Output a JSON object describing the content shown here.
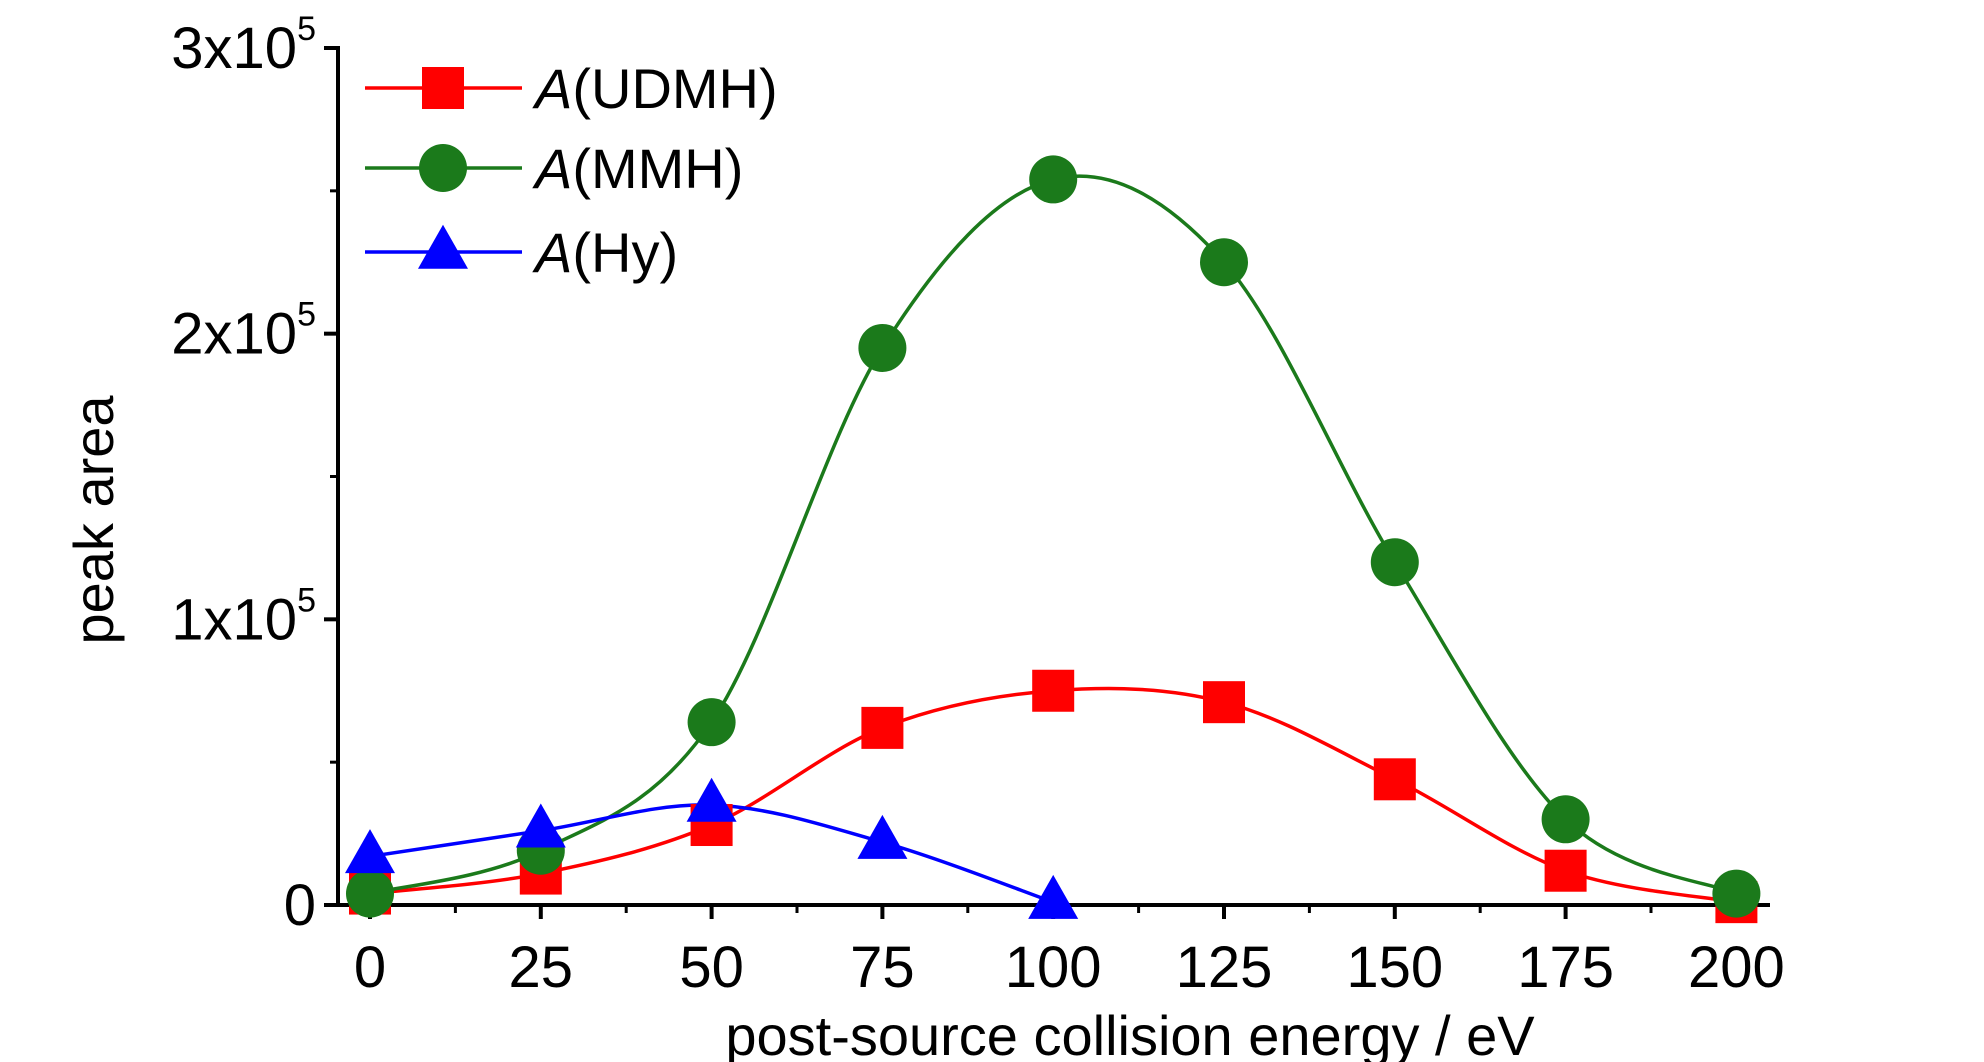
{
  "chart_data": {
    "type": "line",
    "xlabel": "post-source collision energy / eV",
    "ylabel": "peak area",
    "xlim": [
      -10,
      205
    ],
    "ylim": [
      0,
      300000
    ],
    "x_ticks": [
      0,
      25,
      50,
      75,
      100,
      125,
      150,
      175,
      200
    ],
    "x_tick_labels": [
      "0",
      "25",
      "50",
      "75",
      "100",
      "125",
      "150",
      "175",
      "200"
    ],
    "y_ticks": [
      {
        "value": 0,
        "base": "0",
        "exp": ""
      },
      {
        "value": 100000,
        "base": "1x10",
        "exp": "5"
      },
      {
        "value": 200000,
        "base": "2x10",
        "exp": "5"
      },
      {
        "value": 300000,
        "base": "3x10",
        "exp": "5"
      }
    ],
    "grid": false,
    "legend_position": "top-left",
    "series": [
      {
        "name_italic": "A",
        "name_rest": "(UDMH)",
        "color": "#ff0000",
        "marker": "square",
        "x": [
          0,
          25,
          50,
          75,
          100,
          125,
          150,
          175,
          200
        ],
        "values": [
          4000,
          11000,
          28000,
          62000,
          75000,
          71000,
          44000,
          12000,
          1000
        ]
      },
      {
        "name_italic": "A",
        "name_rest": "(MMH)",
        "color": "#1b7a1b",
        "marker": "circle",
        "x": [
          0,
          25,
          50,
          75,
          100,
          125,
          150,
          175,
          200
        ],
        "values": [
          4000,
          19000,
          64000,
          195000,
          254000,
          225000,
          120000,
          30000,
          4000
        ]
      },
      {
        "name_italic": "A",
        "name_rest": "(Hy)",
        "color": "#0000ff",
        "marker": "triangle",
        "x": [
          0,
          25,
          50,
          75,
          100
        ],
        "values": [
          17000,
          26000,
          35000,
          22000,
          1000
        ]
      }
    ]
  }
}
